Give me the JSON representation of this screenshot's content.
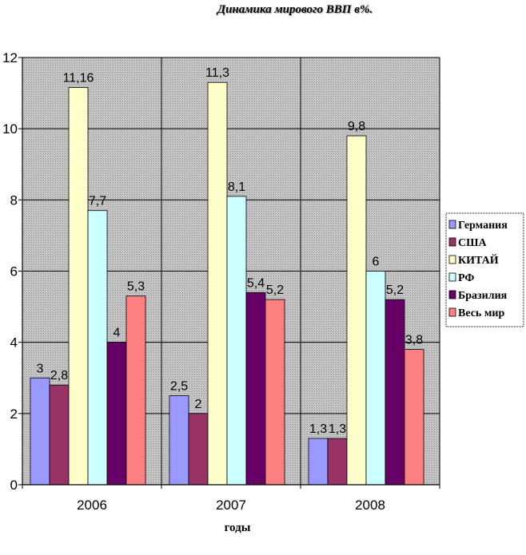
{
  "chart_data": {
    "type": "bar",
    "title": "Динамика мирового ВВП в%.",
    "xlabel": "годы",
    "ylabel": "",
    "categories": [
      "2006",
      "2007",
      "2008"
    ],
    "ylim": [
      0,
      12
    ],
    "yticks": [
      "0",
      "2",
      "4",
      "6",
      "8",
      "10",
      "12"
    ],
    "grid": true,
    "legend_position": "right",
    "series": [
      {
        "name": "Германия",
        "color": "#9999ff",
        "values": [
          3,
          2.5,
          1.3
        ],
        "labels": [
          "3",
          "2,5",
          "1,3"
        ]
      },
      {
        "name": "США",
        "color": "#993366",
        "values": [
          2.8,
          2,
          1.3
        ],
        "labels": [
          "2,8",
          "2",
          "1,3"
        ]
      },
      {
        "name": "КИТАЙ",
        "color": "#ffffcc",
        "values": [
          11.16,
          11.3,
          9.8
        ],
        "labels": [
          "11,16",
          "11,3",
          "9,8"
        ]
      },
      {
        "name": "РФ",
        "color": "#ccffff",
        "values": [
          7.7,
          8.1,
          6
        ],
        "labels": [
          "7,7",
          "8,1",
          "6"
        ]
      },
      {
        "name": "Бразилия",
        "color": "#660066",
        "values": [
          4,
          5.4,
          5.2
        ],
        "labels": [
          "4",
          "5,4",
          "5,2"
        ]
      },
      {
        "name": "Весь мир",
        "color": "#ff8080",
        "values": [
          5.3,
          5.2,
          3.8
        ],
        "labels": [
          "5,3",
          "5,2",
          "3,8"
        ]
      }
    ]
  }
}
